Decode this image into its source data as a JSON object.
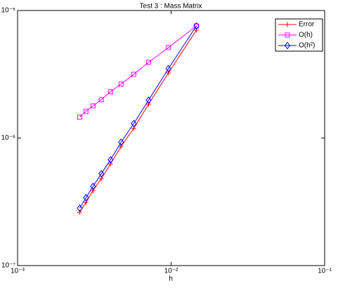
{
  "chart_data": {
    "type": "line",
    "title": "Test 3 : Mass Matrix",
    "x_label": "h",
    "x": [
      0.00254,
      0.00279,
      0.0031,
      0.00351,
      0.00403,
      0.00472,
      0.00571,
      0.00713,
      0.0096,
      0.01462
    ],
    "series": [
      {
        "name": "Error",
        "color": "#ff0000",
        "marker": "+",
        "values": [
          2.62e-07,
          3.13e-07,
          3.87e-07,
          4.8e-07,
          6.26e-07,
          8.59e-07,
          1.19e-06,
          1.84e-06,
          3.24e-06,
          7.02e-06
        ]
      },
      {
        "name": "O(h)",
        "color": "#ff00ff",
        "marker": "s",
        "values": [
          1.46e-06,
          1.62e-06,
          1.79e-06,
          2e-06,
          2.31e-06,
          2.65e-06,
          3.16e-06,
          3.92e-06,
          5.12e-06,
          7.57e-06
        ]
      },
      {
        "name": "O(h²)",
        "color": "#0000ff",
        "marker": "d",
        "values": [
          2.82e-07,
          3.41e-07,
          4.18e-07,
          5.25e-07,
          6.76e-07,
          9.27e-07,
          1.3e-06,
          1.98e-06,
          3.5e-06,
          7.57e-06
        ]
      }
    ],
    "xlim": [
      0.001,
      0.1
    ],
    "ylim": [
      1e-07,
      1e-05
    ],
    "xticks": [
      {
        "value": 0.001,
        "label": "10⁻³"
      },
      {
        "value": 0.01,
        "label": "10⁻²"
      },
      {
        "value": 0.1,
        "label": "10⁻¹"
      }
    ],
    "yticks": [
      {
        "value": 1e-07,
        "label": "10⁻⁷"
      },
      {
        "value": 1e-06,
        "label": "10⁻⁶"
      },
      {
        "value": 1e-05,
        "label": "10⁻⁵"
      }
    ],
    "xscale": "log",
    "yscale": "log",
    "legend": "upper right"
  }
}
